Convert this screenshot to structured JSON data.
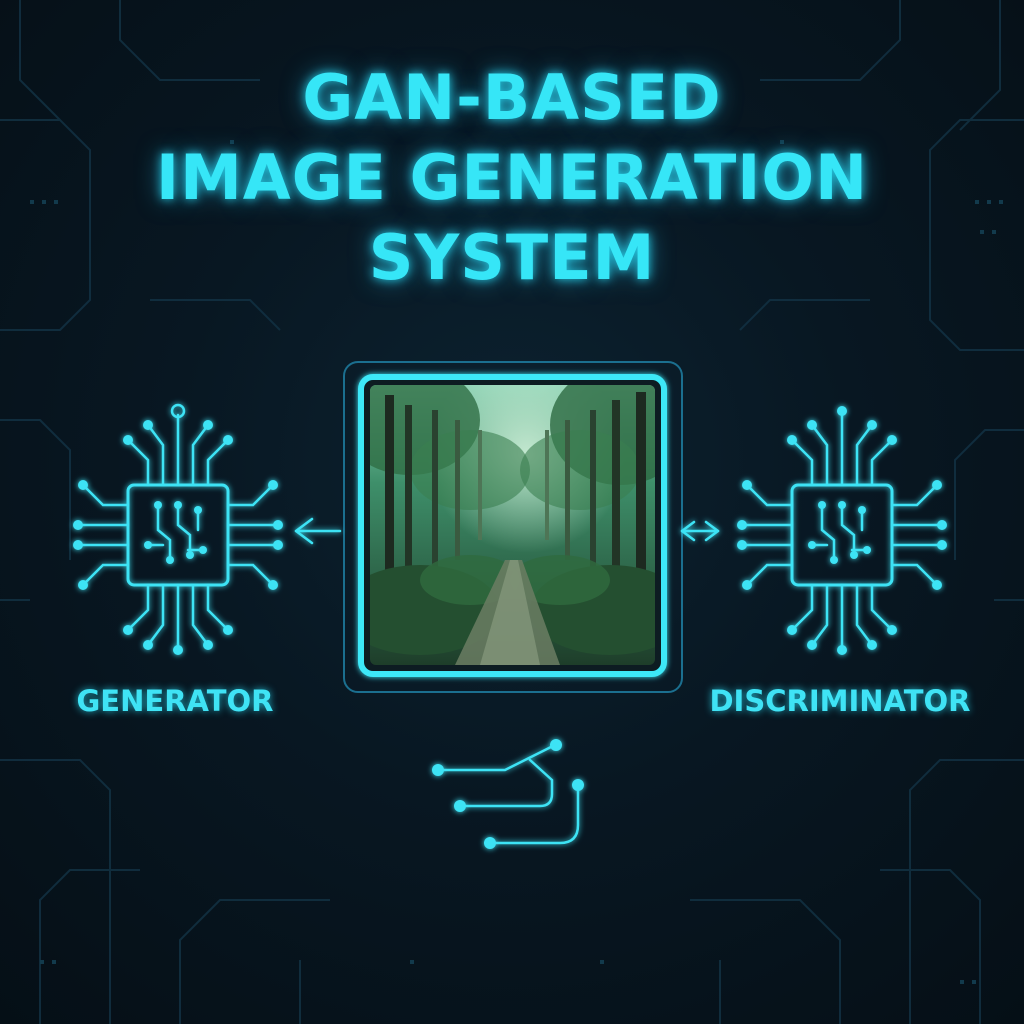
{
  "title": {
    "line1": "GAN-BASED",
    "line2": "IMAGE GENERATION",
    "line3": "SYSTEM"
  },
  "nodes": {
    "generator": {
      "label": "GENERATOR",
      "icon": "chip-icon"
    },
    "discriminator": {
      "label": "DISCRIMINATOR",
      "icon": "chip-icon"
    },
    "image": {
      "subject": "forest-path-image"
    }
  },
  "colors": {
    "accent": "#36e6f7",
    "background": "#07131c",
    "circuit": "#123041"
  }
}
